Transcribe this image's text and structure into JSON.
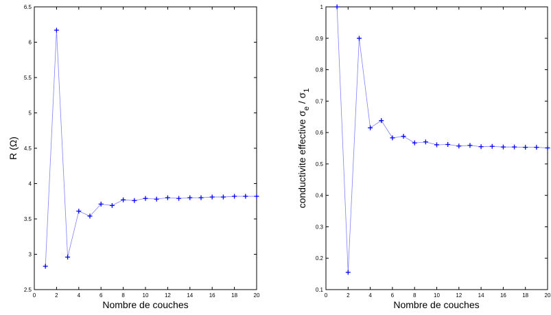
{
  "chart_data": [
    {
      "type": "line",
      "xlabel": "Nombre de couches",
      "ylabel": "R (Ω)",
      "xlim": [
        0,
        20
      ],
      "ylim": [
        2.5,
        6.5
      ],
      "xticks": [
        "0",
        "2",
        "4",
        "6",
        "8",
        "10",
        "12",
        "14",
        "16",
        "18",
        "20"
      ],
      "yticks": [
        "2.5",
        "3",
        "3.5",
        "4",
        "4.5",
        "5",
        "5.5",
        "6",
        "6.5"
      ],
      "grid": false,
      "line_color": "#7f7fff",
      "marker_color": "#0000ff",
      "marker": "+",
      "x": [
        1,
        2,
        3,
        4,
        5,
        6,
        7,
        8,
        9,
        10,
        11,
        12,
        13,
        14,
        15,
        16,
        17,
        18,
        19,
        20
      ],
      "y": [
        2.83,
        6.17,
        2.96,
        3.61,
        3.54,
        3.71,
        3.69,
        3.77,
        3.76,
        3.79,
        3.78,
        3.8,
        3.79,
        3.8,
        3.8,
        3.81,
        3.81,
        3.82,
        3.82,
        3.82
      ]
    },
    {
      "type": "line",
      "xlabel": "Nombre de couches",
      "ylabel_parts": [
        "conductivite effective σ",
        "e",
        " / σ",
        "1"
      ],
      "xlim": [
        0,
        20
      ],
      "ylim": [
        0.1,
        1
      ],
      "xticks": [
        "0",
        "2",
        "4",
        "6",
        "8",
        "10",
        "12",
        "14",
        "16",
        "18",
        "20"
      ],
      "yticks": [
        "0.1",
        "0.2",
        "0.3",
        "0.4",
        "0.5",
        "0.6",
        "0.7",
        "0.8",
        "0.9",
        "1"
      ],
      "grid": false,
      "line_color": "#7f7fff",
      "marker_color": "#0000ff",
      "marker": "+",
      "x": [
        1,
        2,
        3,
        4,
        5,
        6,
        7,
        8,
        9,
        10,
        11,
        12,
        13,
        14,
        15,
        16,
        17,
        18,
        19,
        20
      ],
      "y": [
        1.0,
        0.155,
        0.9,
        0.615,
        0.638,
        0.583,
        0.588,
        0.567,
        0.57,
        0.561,
        0.562,
        0.557,
        0.559,
        0.555,
        0.556,
        0.554,
        0.554,
        0.553,
        0.553,
        0.551
      ]
    }
  ]
}
